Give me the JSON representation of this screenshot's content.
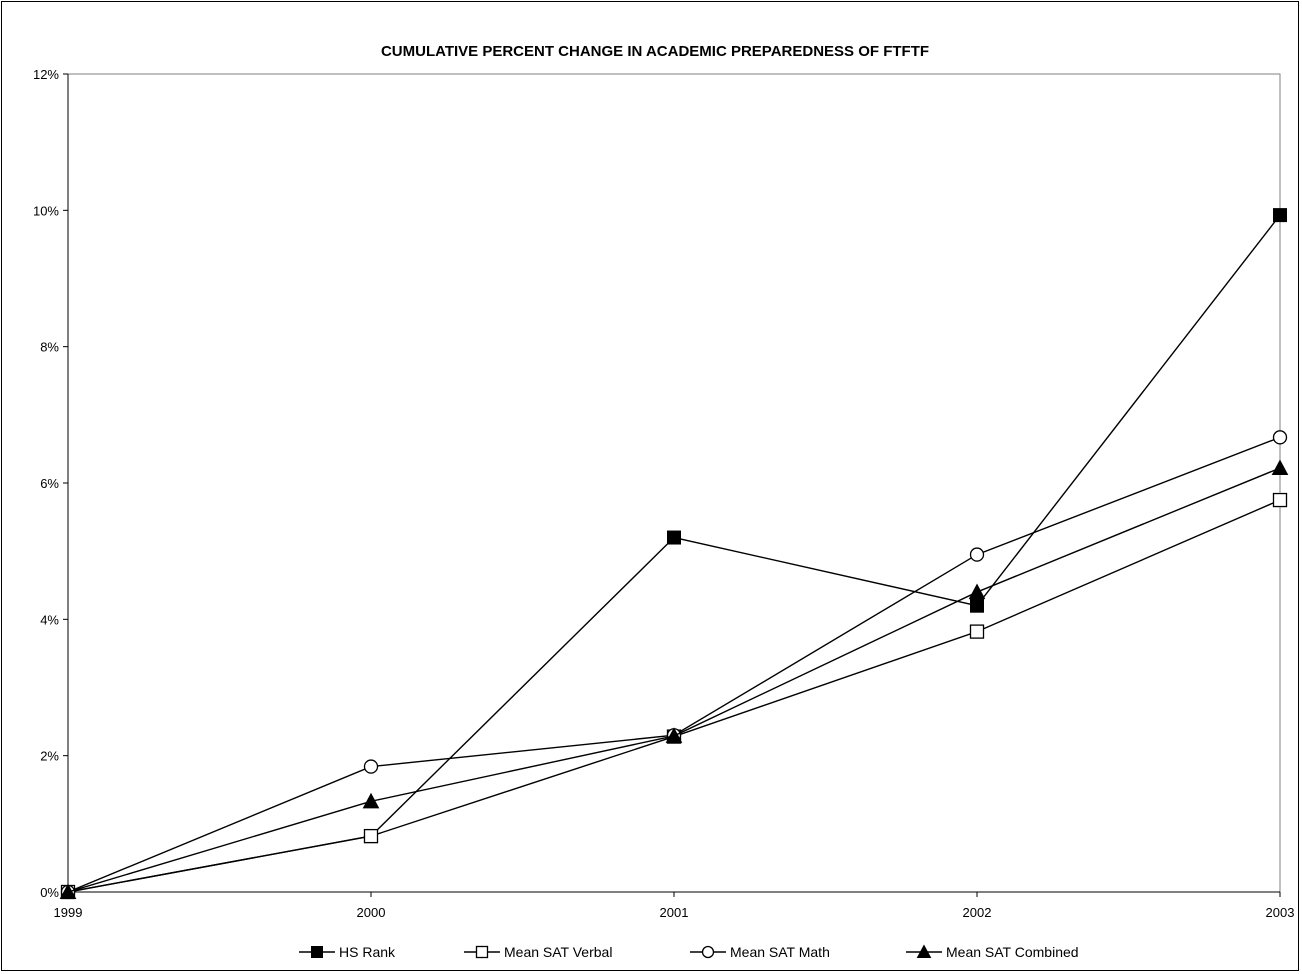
{
  "chart_data": {
    "type": "line",
    "title": "CUMULATIVE PERCENT CHANGE IN ACADEMIC PREPAREDNESS OF FTFTF",
    "categories": [
      "1999",
      "2000",
      "2001",
      "2002",
      "2003"
    ],
    "ylim": [
      0,
      12
    ],
    "yticks": [
      0,
      2,
      4,
      6,
      8,
      10,
      12
    ],
    "ytick_labels": [
      "0%",
      "2%",
      "4%",
      "6%",
      "8%",
      "10%",
      "12%"
    ],
    "ylabel_unit": "%",
    "grid": "horizontal-dashed",
    "legend_position": "bottom",
    "series": [
      {
        "name": "HS Rank",
        "marker": "filled-square",
        "values": [
          0,
          0.82,
          5.2,
          4.2,
          9.93
        ]
      },
      {
        "name": "Mean SAT Verbal",
        "marker": "open-square",
        "values": [
          0,
          0.82,
          2.28,
          3.82,
          5.75
        ]
      },
      {
        "name": "Mean SAT Math",
        "marker": "open-circle",
        "values": [
          0,
          1.84,
          2.3,
          4.95,
          6.67
        ]
      },
      {
        "name": "Mean SAT Combined",
        "marker": "filled-triangle",
        "values": [
          0,
          1.33,
          2.29,
          4.4,
          6.22
        ]
      }
    ]
  },
  "colors": {
    "line": "#000000",
    "plot_background": "#ffffff",
    "gridline": "#000000",
    "plot_border": "#808080"
  }
}
